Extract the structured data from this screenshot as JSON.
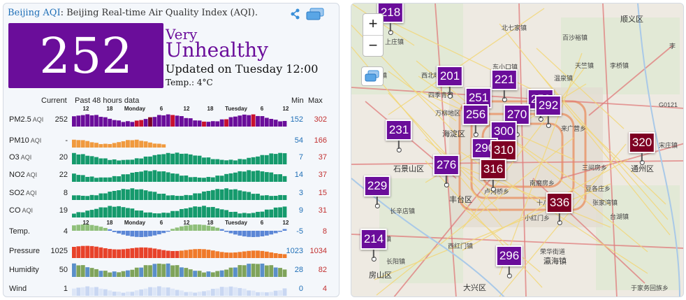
{
  "header": {
    "city": "Beijing AQI",
    "title": ": Beijing Real-time Air Quality Index (AQI)."
  },
  "aqi": {
    "value": "252",
    "level_line1": "Very",
    "level_line2": "Unhealthy",
    "updated": "Updated on Tuesday 12:00",
    "temp": "Temp.: 4°C"
  },
  "table_header": {
    "current": "Current",
    "past": "Past 48 hours data",
    "min": "Min",
    "max": "Max"
  },
  "time_labels": [
    "12",
    "18",
    "Monday",
    "6",
    "12",
    "18",
    "Tuesday",
    "6",
    "12"
  ],
  "rows": [
    {
      "name": "PM2.5",
      "sub": "AQI",
      "current": "252",
      "min": "152",
      "max": "302"
    },
    {
      "name": "PM10",
      "sub": "AQI",
      "current": "-",
      "min": "54",
      "max": "166"
    },
    {
      "name": "O3",
      "sub": "AQI",
      "current": "20",
      "min": "7",
      "max": "37"
    },
    {
      "name": "NO2",
      "sub": "AQI",
      "current": "22",
      "min": "14",
      "max": "37"
    },
    {
      "name": "SO2",
      "sub": "AQI",
      "current": "8",
      "min": "3",
      "max": "15"
    },
    {
      "name": "CO",
      "sub": "AQI",
      "current": "19",
      "min": "9",
      "max": "31"
    },
    {
      "name": "Temp.",
      "sub": "",
      "current": "4",
      "min": "-5",
      "max": "8"
    },
    {
      "name": "Pressure",
      "sub": "",
      "current": "1025",
      "min": "1023",
      "max": "1034"
    },
    {
      "name": "Humidity",
      "sub": "",
      "current": "50",
      "min": "28",
      "max": "82"
    },
    {
      "name": "Wind",
      "sub": "",
      "current": "1",
      "min": "0",
      "max": "4"
    }
  ],
  "colors": {
    "accent": "#6a0d9a",
    "link": "#1f6fb7",
    "max": "#c23030",
    "marker_purple": "#6a0d9a",
    "marker_maroon": "#7e0023"
  },
  "map": {
    "zoom_in": "+",
    "zoom_out": "−",
    "markers": [
      {
        "value": "218",
        "level": "purple"
      },
      {
        "value": "201",
        "level": "purple"
      },
      {
        "value": "221",
        "level": "purple"
      },
      {
        "value": "251",
        "level": "purple"
      },
      {
        "value": "252",
        "level": "purple"
      },
      {
        "value": "292",
        "level": "purple"
      },
      {
        "value": "256",
        "level": "purple"
      },
      {
        "value": "270",
        "level": "purple"
      },
      {
        "value": "300",
        "level": "purple"
      },
      {
        "value": "231",
        "level": "purple"
      },
      {
        "value": "290",
        "level": "purple"
      },
      {
        "value": "310",
        "level": "maroon"
      },
      {
        "value": "276",
        "level": "purple"
      },
      {
        "value": "316",
        "level": "maroon"
      },
      {
        "value": "320",
        "level": "maroon"
      },
      {
        "value": "229",
        "level": "purple"
      },
      {
        "value": "336",
        "level": "maroon"
      },
      {
        "value": "214",
        "level": "purple"
      },
      {
        "value": "296",
        "level": "purple"
      }
    ],
    "labels": [
      "北七家镇",
      "顺义区",
      "上庄镇",
      "百沙裕镇",
      "李",
      "天竺镇",
      "李桥镇",
      "阳坊镇",
      "东小口镇",
      "西北旺镇",
      "温泉镇",
      "四季青镇",
      "万柳地区",
      "海淀区",
      "G0121",
      "来广营乡",
      "石景山区",
      "三间房乡",
      "宋庄镇",
      "通州区",
      "丰台区",
      "卢沟桥乡",
      "南磨房乡",
      "长辛店镇",
      "豆各庄乡",
      "十八里店乡",
      "张家湾镇",
      "台湖镇",
      "小红门乡",
      "西红门镇",
      "荣华街道",
      "王佐镇",
      "长阳镇",
      "瀛海镇",
      "房山区",
      "大兴区",
      "于家务回族乡"
    ]
  }
}
